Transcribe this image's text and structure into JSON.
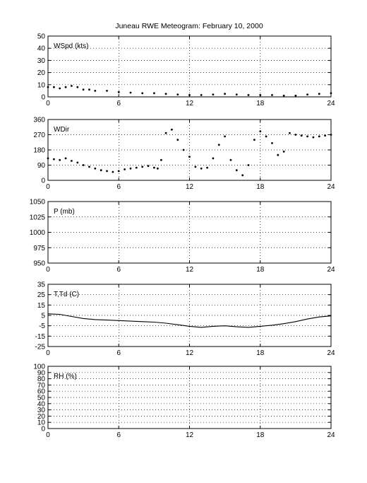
{
  "title": "Juneau RWE Meteogram:  February 10, 2000",
  "colors": {
    "background": "#ffffff",
    "axes": "#000000",
    "grid": "#000000",
    "data": "#000000"
  },
  "chart_data": [
    {
      "id": "wspd",
      "type": "scatter",
      "label": "WSpd (kts)",
      "grid": true,
      "xlim": [
        0,
        24
      ],
      "ylim": [
        0,
        50
      ],
      "xticks": [
        0,
        6,
        12,
        18,
        24
      ],
      "yticks": [
        0,
        10,
        20,
        30,
        40,
        50
      ],
      "series": [
        {
          "x": [
            0.0,
            0.5,
            1.0,
            1.5,
            2.0,
            2.5,
            3.0,
            3.5,
            4.0,
            5.0,
            6.0,
            7.0,
            8.0,
            9.0,
            10.0,
            11.0,
            12.0,
            13.0,
            14.0,
            15.0,
            16.0,
            17.0,
            18.0,
            19.0,
            20.0,
            21.0,
            22.0,
            23.0,
            24.0
          ],
          "y": [
            8,
            8,
            7,
            8,
            9,
            8,
            6,
            6,
            5,
            5,
            4,
            3.5,
            3,
            3,
            2.5,
            2,
            1.5,
            1.5,
            2,
            2.5,
            2,
            1.5,
            1.5,
            1.5,
            1,
            1,
            2,
            2.5,
            3
          ]
        }
      ]
    },
    {
      "id": "wdir",
      "type": "scatter",
      "label": "WDir",
      "grid": true,
      "xlim": [
        0,
        24
      ],
      "ylim": [
        0,
        360
      ],
      "xticks": [
        0,
        6,
        12,
        18,
        24
      ],
      "yticks": [
        0,
        90,
        180,
        270,
        360
      ],
      "series": [
        {
          "x": [
            0.0,
            0.5,
            1.0,
            1.5,
            2.0,
            2.5,
            3.0,
            3.5,
            4.0,
            4.5,
            5.0,
            5.5,
            6.0,
            6.5,
            7.0,
            7.5,
            8.0,
            8.5,
            9.0,
            9.3,
            9.6,
            10.0,
            10.5,
            11.0,
            11.5,
            12.0,
            12.5,
            13.0,
            13.5,
            14.0,
            14.5,
            15.0,
            15.5,
            16.0,
            16.5,
            17.0,
            17.5,
            18.0,
            18.5,
            19.0,
            19.5,
            20.0,
            20.5,
            21.0,
            21.5,
            22.0,
            22.5,
            23.0,
            23.5,
            24.0
          ],
          "y": [
            130,
            125,
            120,
            130,
            115,
            105,
            90,
            80,
            70,
            60,
            55,
            50,
            55,
            65,
            70,
            75,
            80,
            85,
            75,
            70,
            120,
            280,
            300,
            240,
            180,
            140,
            80,
            70,
            75,
            130,
            210,
            260,
            120,
            60,
            30,
            90,
            240,
            290,
            260,
            220,
            150,
            170,
            280,
            270,
            265,
            260,
            255,
            260,
            265,
            270
          ]
        }
      ]
    },
    {
      "id": "p",
      "type": "line",
      "label": "P (mb)",
      "grid": true,
      "xlim": [
        0,
        24
      ],
      "ylim": [
        950,
        1050
      ],
      "xticks": [
        0,
        6,
        12,
        18,
        24
      ],
      "yticks": [
        950,
        975,
        1000,
        1025,
        1050
      ],
      "series": []
    },
    {
      "id": "ttd",
      "type": "line",
      "label": "T,Td (C)",
      "grid": true,
      "xlim": [
        0,
        24
      ],
      "ylim": [
        -25,
        35
      ],
      "xticks": [
        0,
        6,
        12,
        18,
        24
      ],
      "yticks": [
        -25,
        -15,
        -5,
        5,
        15,
        25,
        35
      ],
      "series": [
        {
          "x": [
            0,
            1,
            2,
            3,
            4,
            5,
            6,
            7,
            8,
            9,
            10,
            11,
            12,
            13,
            14,
            15,
            16,
            17,
            18,
            19,
            20,
            21,
            22,
            23,
            24
          ],
          "y": [
            6.5,
            6,
            4,
            2,
            1,
            0.5,
            0,
            -0.5,
            -1,
            -1.5,
            -2.5,
            -4,
            -5.5,
            -6.5,
            -5.5,
            -5,
            -6,
            -6.5,
            -5.5,
            -4.5,
            -3,
            -1,
            1.5,
            3.5,
            4.5
          ]
        }
      ]
    },
    {
      "id": "rh",
      "type": "line",
      "label": "RH (%)",
      "grid": true,
      "xlim": [
        0,
        24
      ],
      "ylim": [
        0,
        100
      ],
      "xticks": [
        0,
        6,
        12,
        18,
        24
      ],
      "yticks": [
        0,
        10,
        20,
        30,
        40,
        50,
        60,
        70,
        80,
        90,
        100
      ],
      "series": []
    }
  ]
}
